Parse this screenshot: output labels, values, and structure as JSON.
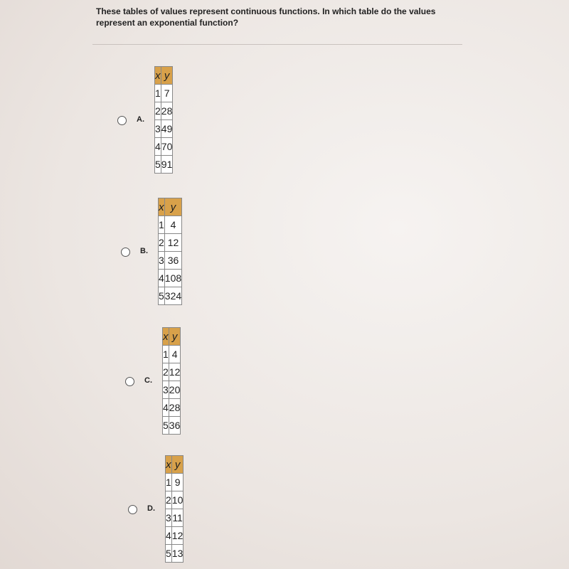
{
  "question": "These tables of values represent continuous functions. In which table do the values represent an exponential function?",
  "options": [
    {
      "letter": "A.",
      "table": {
        "header": [
          "x",
          "y"
        ],
        "rows": [
          [
            1,
            7
          ],
          [
            2,
            28
          ],
          [
            3,
            49
          ],
          [
            4,
            70
          ],
          [
            5,
            91
          ]
        ]
      }
    },
    {
      "letter": "B.",
      "table": {
        "header": [
          "x",
          "y"
        ],
        "rows": [
          [
            1,
            4
          ],
          [
            2,
            12
          ],
          [
            3,
            36
          ],
          [
            4,
            108
          ],
          [
            5,
            324
          ]
        ]
      }
    },
    {
      "letter": "C.",
      "table": {
        "header": [
          "x",
          "y"
        ],
        "rows": [
          [
            1,
            4
          ],
          [
            2,
            12
          ],
          [
            3,
            20
          ],
          [
            4,
            28
          ],
          [
            5,
            36
          ]
        ]
      }
    },
    {
      "letter": "D.",
      "table": {
        "header": [
          "x",
          "y"
        ],
        "rows": [
          [
            1,
            9
          ],
          [
            2,
            10
          ],
          [
            3,
            11
          ],
          [
            4,
            12
          ],
          [
            5,
            13
          ]
        ]
      }
    }
  ]
}
